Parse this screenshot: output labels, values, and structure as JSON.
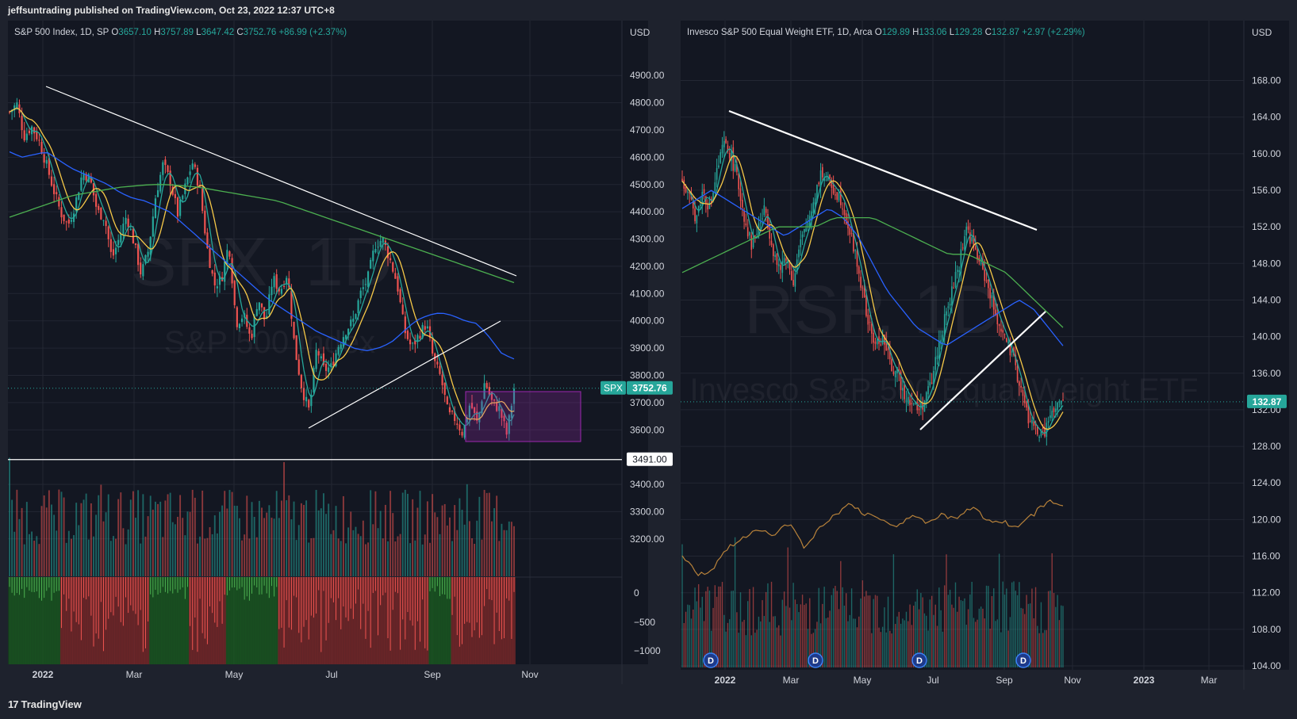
{
  "header": {
    "publisher_line": "jeffsuntrading published on TradingView.com, Oct 23, 2022 12:37 UTC+8"
  },
  "footer": {
    "brand": "TradingView",
    "brand_mark": "17"
  },
  "colors": {
    "background": "#1e222d",
    "pane": "#131722",
    "up": "#26a69a",
    "down": "#ef5350",
    "ema_fast": "#26a69a",
    "ema_yellow": "#f7c948",
    "sma_blue": "#2962ff",
    "sma_green": "#4caf50",
    "trendline": "#ffffff",
    "box": "#9c27b0",
    "rs_line": "#b8823a"
  },
  "chart_data": [
    {
      "type": "candlestick",
      "title": "S&P 500 Index, 1D, SP",
      "watermark_symbol": "SPX, 1D",
      "watermark_name": "S&P 500 Index",
      "ohlc": {
        "open_label": "O",
        "open": "3657.10",
        "high_label": "H",
        "high": "3757.89",
        "low_label": "L",
        "low": "3647.42",
        "close_label": "C",
        "close": "3752.76",
        "change": "+86.99 (+2.37%)"
      },
      "currency": "USD",
      "y_ticks": [
        "4900.00",
        "4800.00",
        "4700.00",
        "4600.00",
        "4500.00",
        "4400.00",
        "4300.00",
        "4200.00",
        "4100.00",
        "4000.00",
        "3900.00",
        "3800.00",
        "3700.00",
        "3600.00",
        "3400.00",
        "3300.00",
        "3200.00"
      ],
      "ylim": [
        3150,
        4950
      ],
      "x_ticks": [
        "2022",
        "Mar",
        "May",
        "Jul",
        "Sep",
        "Nov"
      ],
      "last_price_tag": {
        "symbol": "SPX",
        "value": "3752.76"
      },
      "horizontal_level": {
        "label": "3491.00",
        "value": 3491
      },
      "oscillator_ticks": [
        "0",
        "−500",
        "−1000"
      ],
      "close_path": [
        4766,
        4796,
        4677,
        4713,
        4663,
        4577,
        4482,
        4397,
        4349,
        4431,
        4546,
        4521,
        4401,
        4380,
        4225,
        4304,
        4386,
        4288,
        4170,
        4259,
        4462,
        4575,
        4510,
        4392,
        4488,
        4582,
        4488,
        4271,
        4131,
        4155,
        4287,
        3991,
        4023,
        3930,
        4088,
        3991,
        4158,
        4108,
        4177,
        3901,
        3750,
        3667,
        3900,
        3820,
        3830,
        3911,
        3966,
        4001,
        4100,
        4155,
        4280,
        4300,
        4228,
        4137,
        3966,
        3900,
        3950,
        3990,
        3855,
        3790,
        3655,
        3640,
        3585,
        3700,
        3620,
        3780,
        3700,
        3676,
        3583,
        3752
      ],
      "sma_blue_path": [
        4620,
        4600,
        4610,
        4620,
        4590,
        4560,
        4540,
        4520,
        4500,
        4470,
        4450,
        4440,
        4420,
        4400,
        4360,
        4320,
        4280,
        4240,
        4200,
        4160,
        4120,
        4080,
        4050,
        4020,
        3990,
        3960,
        3940,
        3920,
        3900,
        3890,
        3900,
        3920,
        3960,
        4000,
        4020,
        4030,
        4020,
        4000,
        3990,
        3940,
        3880,
        3860
      ],
      "sma_green_path": [
        4380,
        4400,
        4420,
        4440,
        4460,
        4470,
        4480,
        4490,
        4495,
        4500,
        4500,
        4495,
        4490,
        4480,
        4470,
        4460,
        4450,
        4440,
        4420,
        4400,
        4380,
        4360,
        4340,
        4320,
        4300,
        4280,
        4260,
        4240,
        4220,
        4200,
        4180,
        4160,
        4140
      ]
    },
    {
      "type": "candlestick",
      "title": "Invesco S&P 500 Equal Weight ETF, 1D, Arca",
      "watermark_symbol": "RSP, 1D",
      "watermark_name": "Invesco S&P 500 Equal Weight ETF",
      "ohlc": {
        "open_label": "O",
        "open": "129.89",
        "high_label": "H",
        "high": "133.06",
        "low_label": "L",
        "low": "129.28",
        "close_label": "C",
        "close": "132.87",
        "change": "+2.97 (+2.29%)"
      },
      "currency": "USD",
      "y_ticks": [
        "168.00",
        "164.00",
        "160.00",
        "156.00",
        "152.00",
        "148.00",
        "144.00",
        "140.00",
        "136.00",
        "132.00",
        "128.00",
        "124.00",
        "120.00",
        "116.00",
        "112.00",
        "108.00",
        "104.00"
      ],
      "ylim": [
        104,
        169
      ],
      "x_ticks": [
        "2022",
        "Mar",
        "May",
        "Jul",
        "Sep",
        "Nov",
        "2023",
        "Mar"
      ],
      "last_price_tag": {
        "value": "132.87"
      },
      "dividend_marker": "D",
      "close_path": [
        157,
        155,
        153,
        156,
        154,
        158,
        161,
        160,
        157,
        153,
        150,
        152,
        154,
        150,
        147,
        149,
        146,
        150,
        152,
        155,
        158,
        157,
        156,
        155,
        152,
        149,
        145,
        141,
        139,
        140,
        137,
        136,
        134,
        133,
        132,
        133,
        135,
        139,
        142,
        145,
        148,
        152,
        150,
        148,
        146,
        143,
        141,
        139,
        137,
        134,
        131,
        130,
        129,
        131,
        132,
        133
      ],
      "sma_blue_path": [
        154,
        155,
        156,
        155,
        154,
        153,
        152,
        151,
        152,
        153,
        154,
        153,
        151,
        148,
        145,
        143,
        141,
        140,
        139,
        140,
        141,
        142,
        143,
        144,
        143,
        141,
        139
      ],
      "sma_green_path": [
        147,
        148,
        149,
        150,
        151,
        152,
        152,
        152,
        153,
        153,
        153,
        152,
        151,
        150,
        149,
        149,
        148,
        147,
        145,
        143,
        141
      ]
    }
  ]
}
